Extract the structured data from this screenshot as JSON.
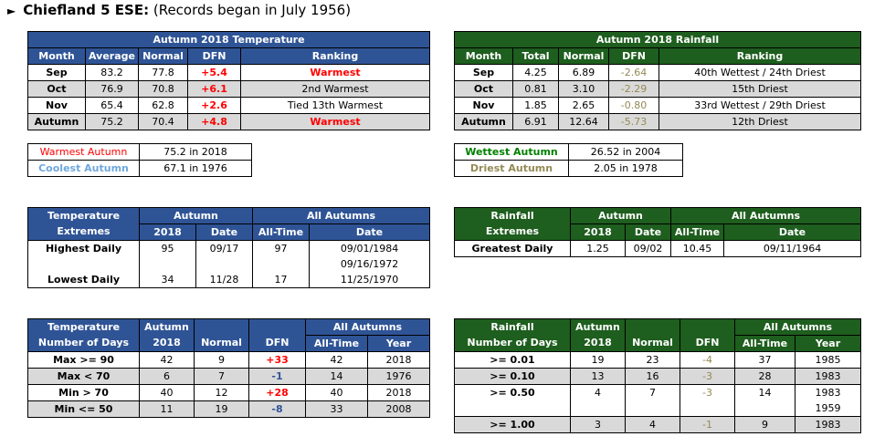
{
  "title": {
    "arrow": "►",
    "station": "Chiefland 5 ESE:",
    "records": " (Records began in July 1956)"
  },
  "temp": {
    "title": "Autumn 2018 Temperature",
    "headers": [
      "Month",
      "Average",
      "Normal",
      "DFN",
      "Ranking"
    ],
    "rows": [
      [
        "Sep",
        "83.2",
        "77.8",
        "+5.4",
        "Warmest"
      ],
      [
        "Oct",
        "76.9",
        "70.8",
        "+6.1",
        "2nd Warmest"
      ],
      [
        "Nov",
        "65.4",
        "62.8",
        "+2.6",
        "Tied 13th Warmest"
      ],
      [
        "Autumn",
        "75.2",
        "70.4",
        "+4.8",
        "Warmest"
      ]
    ]
  },
  "rain": {
    "title": "Autumn 2018 Rainfall",
    "headers": [
      "Month",
      "Total",
      "Normal",
      "DFN",
      "Ranking"
    ],
    "rows": [
      [
        "Sep",
        "4.25",
        "6.89",
        "-2.64",
        "40th Wettest / 24th Driest"
      ],
      [
        "Oct",
        "0.81",
        "3.10",
        "-2.29",
        "15th Driest"
      ],
      [
        "Nov",
        "1.85",
        "2.65",
        "-0.80",
        "33rd Wettest / 29th Driest"
      ],
      [
        "Autumn",
        "6.91",
        "12.64",
        "-5.73",
        "12th Driest"
      ]
    ]
  },
  "temp_records": {
    "warmest_label": "Warmest Autumn",
    "warmest_value": "75.2 in 2018",
    "coolest_label": "Coolest Autumn",
    "coolest_value": "67.1 in 1976"
  },
  "rain_records": {
    "wettest_label": "Wettest Autumn",
    "wettest_value": "26.52 in 2004",
    "driest_label": "Driest Autumn",
    "driest_value": "2.05 in 1978"
  },
  "temp_extremes": {
    "h1": "Temperature",
    "h2": "Extremes",
    "autumn": "Autumn",
    "all": "All Autumns",
    "c2018": "2018",
    "date": "Date",
    "alltime": "All-Time",
    "date2": "Date",
    "highest_label": "Highest Daily",
    "highest_2018": "95",
    "highest_date": "09/17",
    "highest_all": "97",
    "highest_all_date1": "09/01/1984",
    "highest_all_date2": "09/16/1972",
    "lowest_label": "Lowest Daily",
    "lowest_2018": "34",
    "lowest_date": "11/28",
    "lowest_all": "17",
    "lowest_all_date": "11/25/1970"
  },
  "rain_extremes": {
    "h1": "Rainfall",
    "h2": "Extremes",
    "autumn": "Autumn",
    "all": "All Autumns",
    "c2018": "2018",
    "date": "Date",
    "alltime": "All-Time",
    "date2": "Date",
    "greatest_label": "Greatest Daily",
    "greatest_2018": "1.25",
    "greatest_date": "09/02",
    "greatest_all": "10.45",
    "greatest_all_date": "09/11/1964"
  },
  "temp_days": {
    "h1": "Temperature",
    "h2": "Number of Days",
    "autumn": "Autumn",
    "c2018": "2018",
    "normal": "Normal",
    "dfn": "DFN",
    "all": "All Autumns",
    "alltime": "All-Time",
    "year": "Year",
    "rows": [
      [
        "Max >= 90",
        "42",
        "9",
        "+33",
        "42",
        "2018"
      ],
      [
        "Max < 70",
        "6",
        "7",
        "-1",
        "14",
        "1976"
      ],
      [
        "Min > 70",
        "40",
        "12",
        "+28",
        "40",
        "2018"
      ],
      [
        "Min <= 50",
        "11",
        "19",
        "-8",
        "33",
        "2008"
      ]
    ]
  },
  "rain_days": {
    "h1": "Rainfall",
    "h2": "Number of Days",
    "autumn": "Autumn",
    "c2018": "2018",
    "normal": "Normal",
    "dfn": "DFN",
    "all": "All Autumns",
    "alltime": "All-Time",
    "year": "Year",
    "rows": [
      [
        ">= 0.01",
        "19",
        "23",
        "-4",
        "37",
        "1985"
      ],
      [
        ">= 0.10",
        "13",
        "16",
        "-3",
        "28",
        "1983"
      ],
      [
        ">= 0.50",
        "4",
        "7",
        "-3",
        "14",
        "1983"
      ],
      [
        "",
        "",
        "",
        "",
        "",
        "1959"
      ],
      [
        ">= 1.00",
        "3",
        "4",
        "-1",
        "9",
        "1983"
      ]
    ]
  },
  "colors": {
    "blue_header": "#2f5496",
    "green_header": "#1e5e1e",
    "gray_row": "#d9d9d9",
    "red": "#ff0000",
    "olive": "#948a54"
  }
}
